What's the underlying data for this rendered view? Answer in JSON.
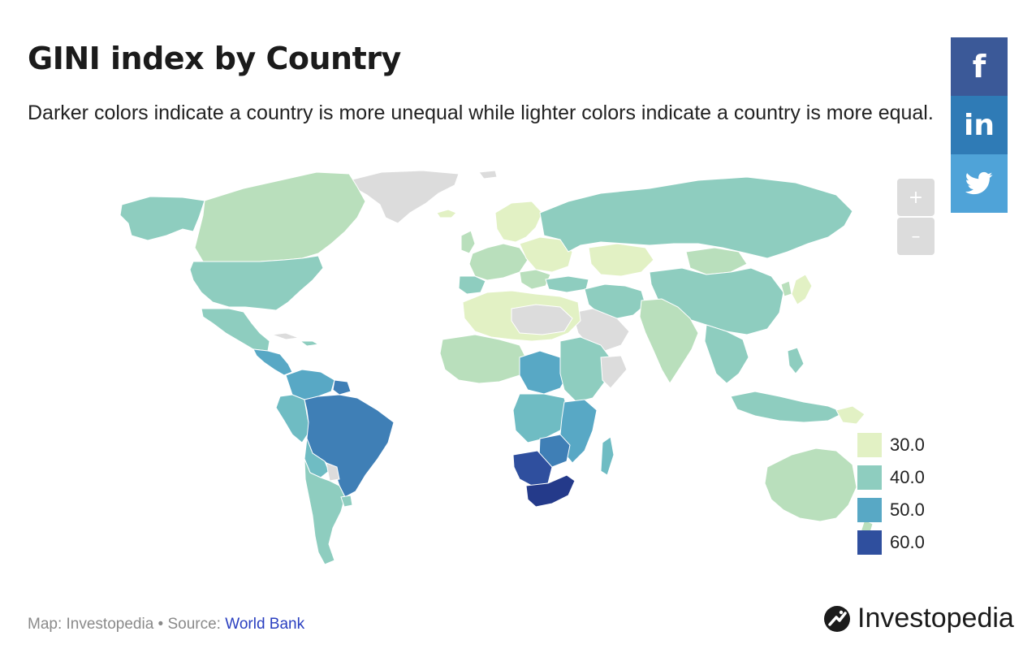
{
  "title": "GINI index by Country",
  "subtitle": "Darker colors indicate a country is more unequal while lighter colors indicate a country is more equal.",
  "zoom": {
    "in_label": "+",
    "out_label": "–"
  },
  "share": {
    "facebook": "f",
    "linkedin": "in",
    "twitter": "twitter-icon"
  },
  "legend": [
    {
      "label": "30.0",
      "color": "#e2f1c4"
    },
    {
      "label": "40.0",
      "color": "#8ecdbf"
    },
    {
      "label": "50.0",
      "color": "#58a8c5"
    },
    {
      "label": "60.0",
      "color": "#2f4f9e"
    }
  ],
  "colors": {
    "no_data": "#dcdcdc",
    "c30": "#e2f1c4",
    "c35": "#b9dfbc",
    "c40": "#8ecdbf",
    "c45": "#6fbcc3",
    "c50": "#58a8c5",
    "c55": "#3f7fb6",
    "c60": "#2f4f9e",
    "c63": "#243a8a"
  },
  "footer": {
    "prefix": "Map: Investopedia • Source: ",
    "source": "World Bank"
  },
  "brand": "Investopedia"
}
